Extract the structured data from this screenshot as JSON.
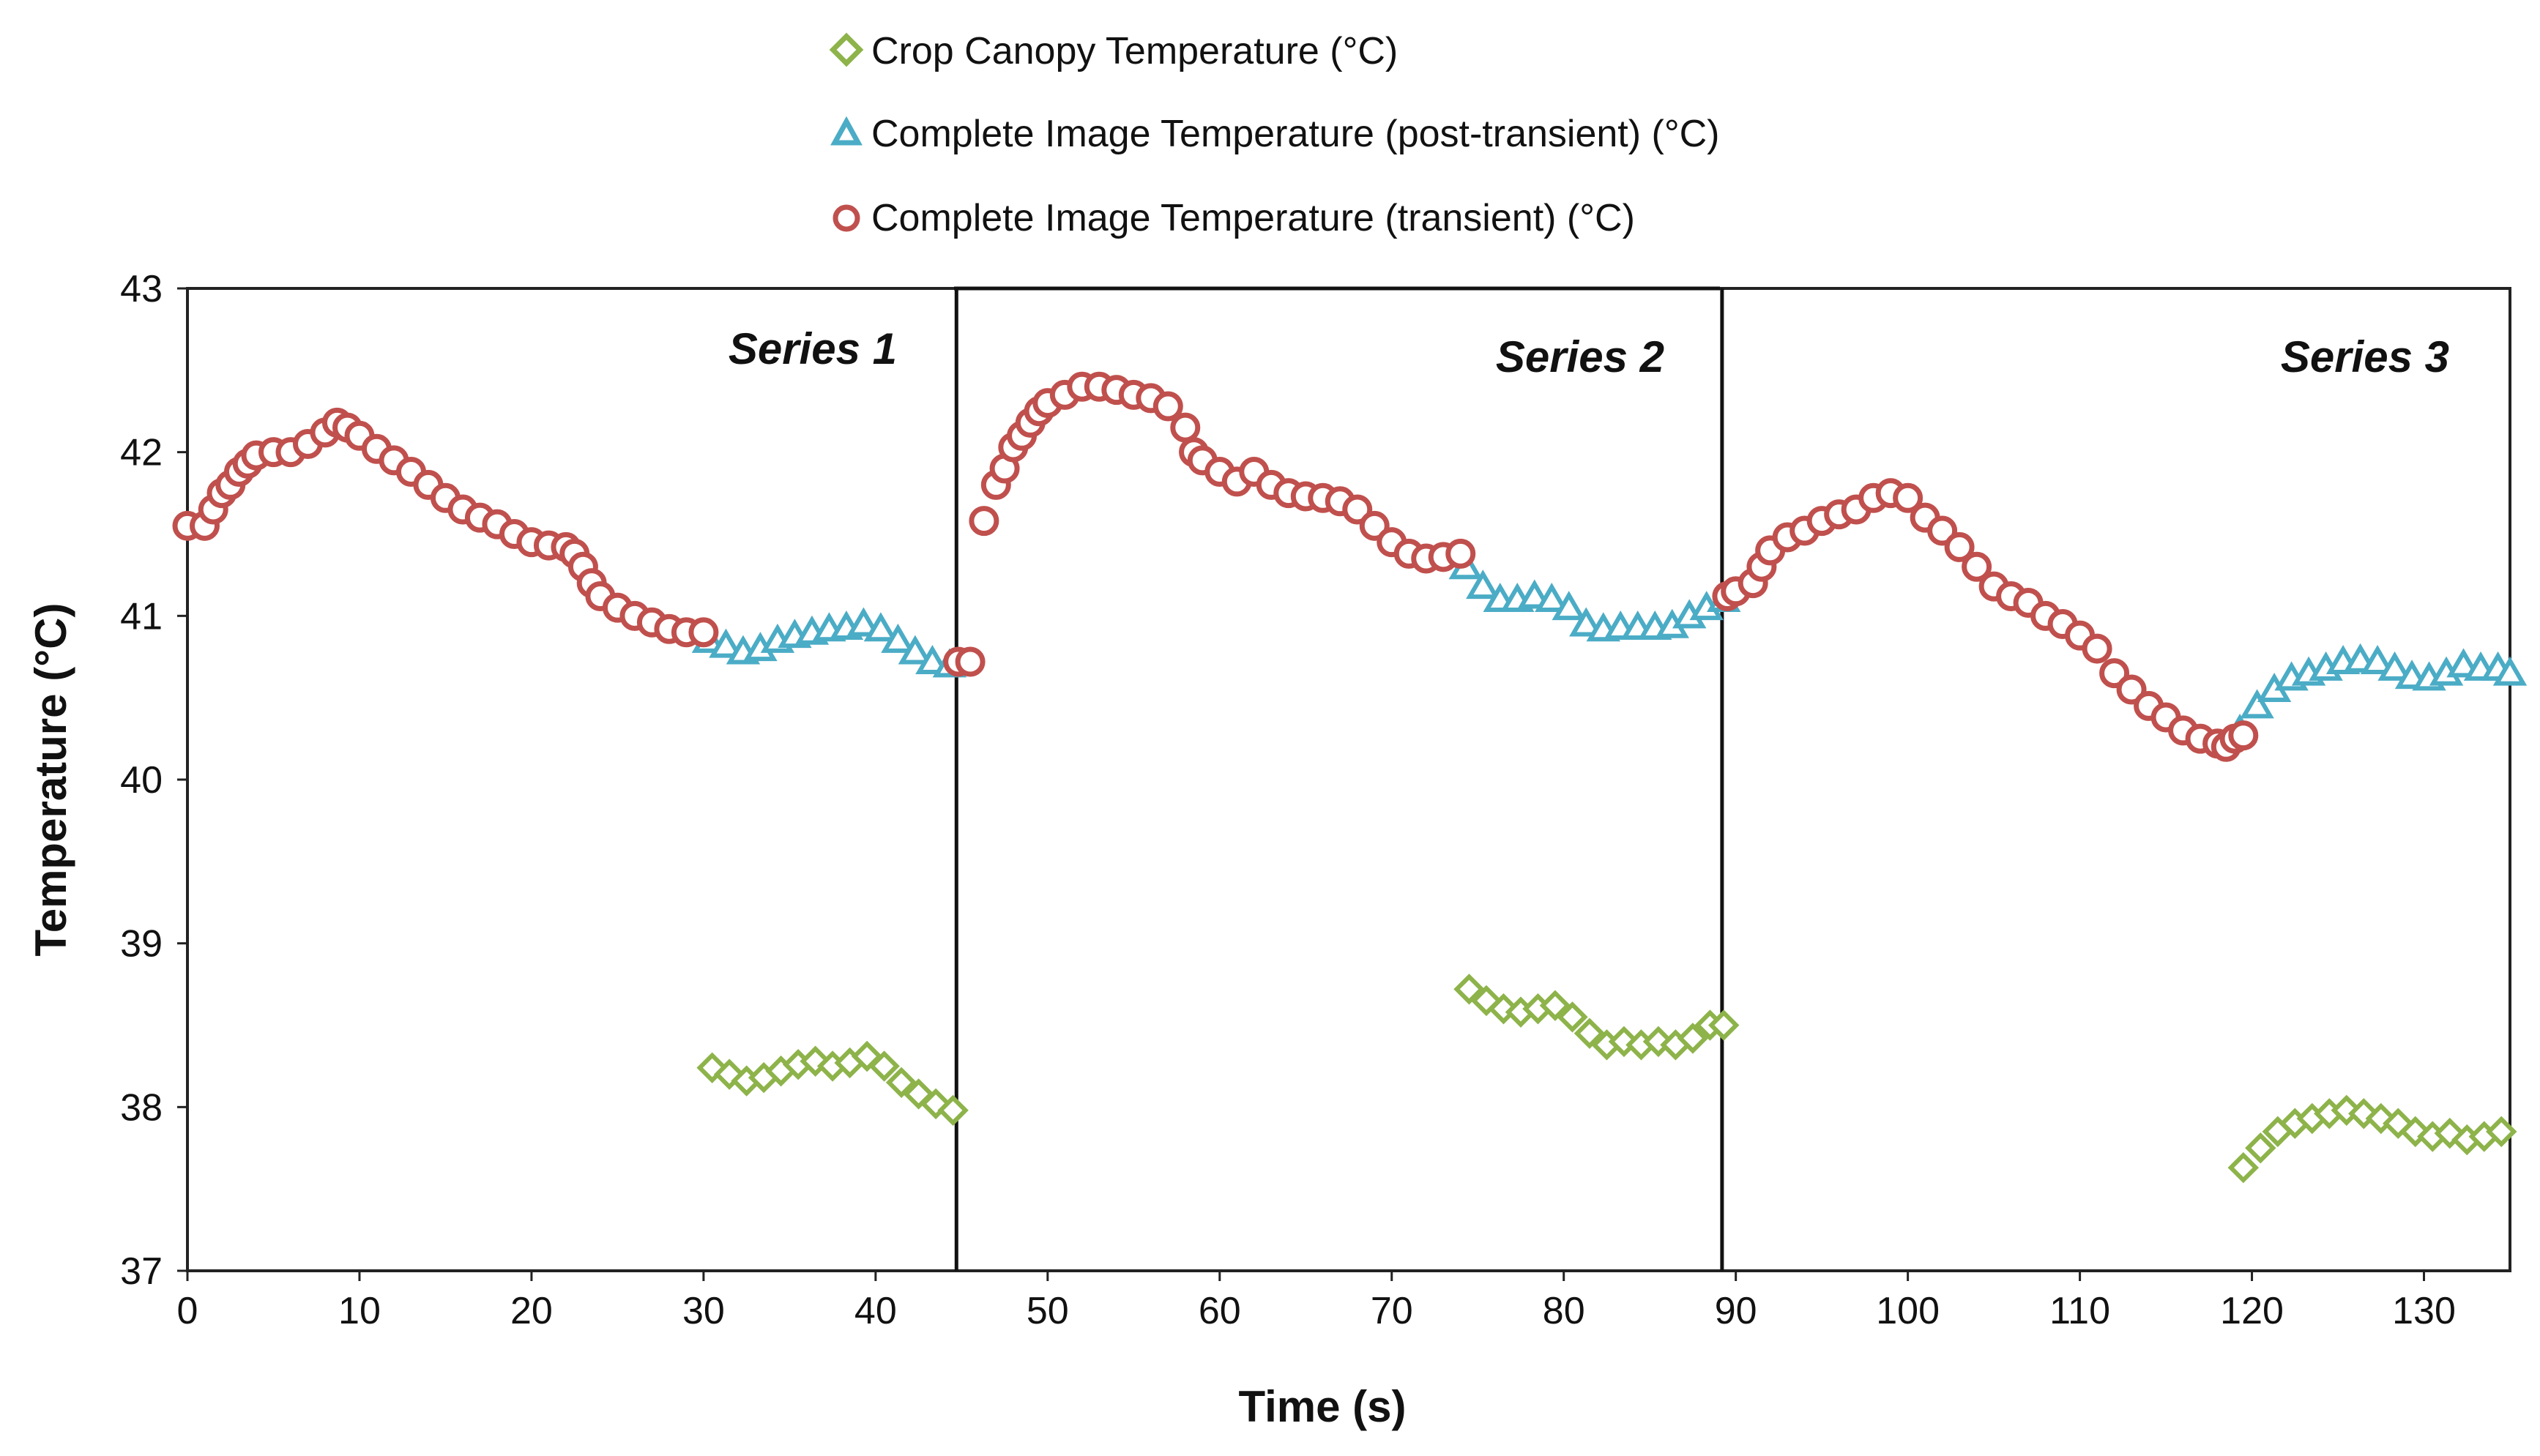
{
  "chart_data": {
    "type": "scatter",
    "xlabel": "Time (s)",
    "ylabel": "Temperature (°C)",
    "xlim": [
      0,
      135
    ],
    "ylim": [
      37,
      43
    ],
    "xticks": [
      "0",
      "10",
      "20",
      "30",
      "40",
      "50",
      "60",
      "70",
      "80",
      "90",
      "100",
      "110",
      "120",
      "130"
    ],
    "yticks": [
      "37",
      "38",
      "39",
      "40",
      "41",
      "42",
      "43"
    ],
    "grid": false,
    "legend_position": "top-center",
    "panel_labels": [
      "Series 1",
      "Series 2",
      "Series 3"
    ],
    "panel_dividers_x": [
      44.7,
      89.2
    ],
    "series": [
      {
        "name": "Crop Canopy Temperature (°C)",
        "marker": "diamond",
        "color": "#8db34a",
        "points": [
          [
            30.5,
            38.24
          ],
          [
            31.5,
            38.2
          ],
          [
            32.5,
            38.16
          ],
          [
            33.5,
            38.18
          ],
          [
            34.5,
            38.22
          ],
          [
            35.5,
            38.26
          ],
          [
            36.5,
            38.28
          ],
          [
            37.5,
            38.25
          ],
          [
            38.5,
            38.27
          ],
          [
            39.5,
            38.31
          ],
          [
            40.5,
            38.25
          ],
          [
            41.5,
            38.15
          ],
          [
            42.5,
            38.08
          ],
          [
            43.5,
            38.02
          ],
          [
            44.5,
            37.98
          ],
          [
            74.5,
            38.72
          ],
          [
            75.5,
            38.65
          ],
          [
            76.5,
            38.6
          ],
          [
            77.5,
            38.58
          ],
          [
            78.5,
            38.6
          ],
          [
            79.5,
            38.62
          ],
          [
            80.5,
            38.55
          ],
          [
            81.5,
            38.45
          ],
          [
            82.5,
            38.38
          ],
          [
            83.5,
            38.4
          ],
          [
            84.5,
            38.38
          ],
          [
            85.5,
            38.4
          ],
          [
            86.5,
            38.38
          ],
          [
            87.5,
            38.42
          ],
          [
            88.5,
            38.5
          ],
          [
            89.3,
            38.5
          ],
          [
            119.5,
            37.63
          ],
          [
            120.5,
            37.75
          ],
          [
            121.5,
            37.85
          ],
          [
            122.5,
            37.9
          ],
          [
            123.5,
            37.93
          ],
          [
            124.5,
            37.96
          ],
          [
            125.5,
            37.98
          ],
          [
            126.5,
            37.96
          ],
          [
            127.5,
            37.93
          ],
          [
            128.5,
            37.9
          ],
          [
            129.5,
            37.85
          ],
          [
            130.5,
            37.82
          ],
          [
            131.5,
            37.84
          ],
          [
            132.5,
            37.8
          ],
          [
            133.5,
            37.82
          ],
          [
            134.5,
            37.85
          ]
        ]
      },
      {
        "name": "Complete Image Temperature (post-transient) (°C)",
        "marker": "triangle",
        "color": "#4bacc6",
        "points": [
          [
            30.3,
            40.85
          ],
          [
            31.3,
            40.82
          ],
          [
            32.3,
            40.78
          ],
          [
            33.3,
            40.8
          ],
          [
            34.3,
            40.85
          ],
          [
            35.3,
            40.88
          ],
          [
            36.3,
            40.9
          ],
          [
            37.3,
            40.92
          ],
          [
            38.3,
            40.93
          ],
          [
            39.3,
            40.95
          ],
          [
            40.3,
            40.92
          ],
          [
            41.3,
            40.85
          ],
          [
            42.3,
            40.78
          ],
          [
            43.3,
            40.72
          ],
          [
            44.3,
            40.7
          ],
          [
            74.3,
            41.3
          ],
          [
            75.3,
            41.18
          ],
          [
            76.3,
            41.1
          ],
          [
            77.3,
            41.1
          ],
          [
            78.3,
            41.12
          ],
          [
            79.3,
            41.1
          ],
          [
            80.3,
            41.05
          ],
          [
            81.3,
            40.95
          ],
          [
            82.3,
            40.92
          ],
          [
            83.3,
            40.93
          ],
          [
            84.3,
            40.93
          ],
          [
            85.3,
            40.93
          ],
          [
            86.3,
            40.94
          ],
          [
            87.3,
            41.0
          ],
          [
            88.3,
            41.05
          ],
          [
            89.3,
            41.1
          ],
          [
            119.3,
            40.3
          ],
          [
            120.3,
            40.45
          ],
          [
            121.3,
            40.55
          ],
          [
            122.3,
            40.62
          ],
          [
            123.3,
            40.65
          ],
          [
            124.3,
            40.68
          ],
          [
            125.3,
            40.72
          ],
          [
            126.3,
            40.73
          ],
          [
            127.3,
            40.72
          ],
          [
            128.3,
            40.68
          ],
          [
            129.3,
            40.63
          ],
          [
            130.3,
            40.62
          ],
          [
            131.3,
            40.65
          ],
          [
            132.3,
            40.7
          ],
          [
            133.3,
            40.68
          ],
          [
            134.3,
            40.68
          ],
          [
            135.0,
            40.65
          ]
        ]
      },
      {
        "name": "Complete Image Temperature (transient) (°C)",
        "marker": "circle",
        "color": "#c0504d",
        "points": [
          [
            0,
            41.55
          ],
          [
            1,
            41.55
          ],
          [
            1.5,
            41.65
          ],
          [
            2,
            41.75
          ],
          [
            2.5,
            41.8
          ],
          [
            3,
            41.88
          ],
          [
            3.5,
            41.93
          ],
          [
            4,
            41.98
          ],
          [
            5,
            42.0
          ],
          [
            6,
            42.0
          ],
          [
            7,
            42.05
          ],
          [
            8,
            42.12
          ],
          [
            8.7,
            42.18
          ],
          [
            9.3,
            42.15
          ],
          [
            10,
            42.1
          ],
          [
            11,
            42.02
          ],
          [
            12,
            41.95
          ],
          [
            13,
            41.88
          ],
          [
            14,
            41.8
          ],
          [
            15,
            41.72
          ],
          [
            16,
            41.65
          ],
          [
            17,
            41.6
          ],
          [
            18,
            41.56
          ],
          [
            19,
            41.5
          ],
          [
            20,
            41.45
          ],
          [
            21,
            41.43
          ],
          [
            22,
            41.42
          ],
          [
            22.5,
            41.38
          ],
          [
            23,
            41.3
          ],
          [
            23.5,
            41.2
          ],
          [
            24,
            41.12
          ],
          [
            25,
            41.05
          ],
          [
            26,
            41.0
          ],
          [
            27,
            40.96
          ],
          [
            28,
            40.92
          ],
          [
            29,
            40.9
          ],
          [
            30,
            40.9
          ],
          [
            44.8,
            40.72
          ],
          [
            45.5,
            40.72
          ],
          [
            46.3,
            41.58
          ],
          [
            47,
            41.8
          ],
          [
            47.5,
            41.9
          ],
          [
            48,
            42.03
          ],
          [
            48.5,
            42.1
          ],
          [
            49,
            42.18
          ],
          [
            49.5,
            42.25
          ],
          [
            50,
            42.3
          ],
          [
            51,
            42.35
          ],
          [
            52,
            42.4
          ],
          [
            53,
            42.4
          ],
          [
            54,
            42.38
          ],
          [
            55,
            42.35
          ],
          [
            56,
            42.33
          ],
          [
            57,
            42.28
          ],
          [
            58,
            42.15
          ],
          [
            58.5,
            42.0
          ],
          [
            59,
            41.95
          ],
          [
            60,
            41.88
          ],
          [
            61,
            41.82
          ],
          [
            62,
            41.88
          ],
          [
            63,
            41.8
          ],
          [
            64,
            41.75
          ],
          [
            65,
            41.73
          ],
          [
            66,
            41.72
          ],
          [
            67,
            41.7
          ],
          [
            68,
            41.65
          ],
          [
            69,
            41.55
          ],
          [
            70,
            41.45
          ],
          [
            71,
            41.38
          ],
          [
            72,
            41.35
          ],
          [
            73,
            41.36
          ],
          [
            74,
            41.38
          ],
          [
            89.5,
            41.12
          ],
          [
            90,
            41.15
          ],
          [
            91,
            41.2
          ],
          [
            91.5,
            41.3
          ],
          [
            92,
            41.4
          ],
          [
            93,
            41.48
          ],
          [
            94,
            41.52
          ],
          [
            95,
            41.58
          ],
          [
            96,
            41.62
          ],
          [
            97,
            41.65
          ],
          [
            98,
            41.72
          ],
          [
            99,
            41.75
          ],
          [
            100,
            41.72
          ],
          [
            101,
            41.6
          ],
          [
            102,
            41.52
          ],
          [
            103,
            41.42
          ],
          [
            104,
            41.3
          ],
          [
            105,
            41.18
          ],
          [
            106,
            41.12
          ],
          [
            107,
            41.08
          ],
          [
            108,
            41.0
          ],
          [
            109,
            40.95
          ],
          [
            110,
            40.88
          ],
          [
            111,
            40.8
          ],
          [
            112,
            40.65
          ],
          [
            113,
            40.55
          ],
          [
            114,
            40.45
          ],
          [
            115,
            40.38
          ],
          [
            116,
            40.3
          ],
          [
            117,
            40.25
          ],
          [
            118,
            40.22
          ],
          [
            118.5,
            40.2
          ],
          [
            119,
            40.25
          ],
          [
            119.5,
            40.27
          ]
        ]
      }
    ]
  }
}
